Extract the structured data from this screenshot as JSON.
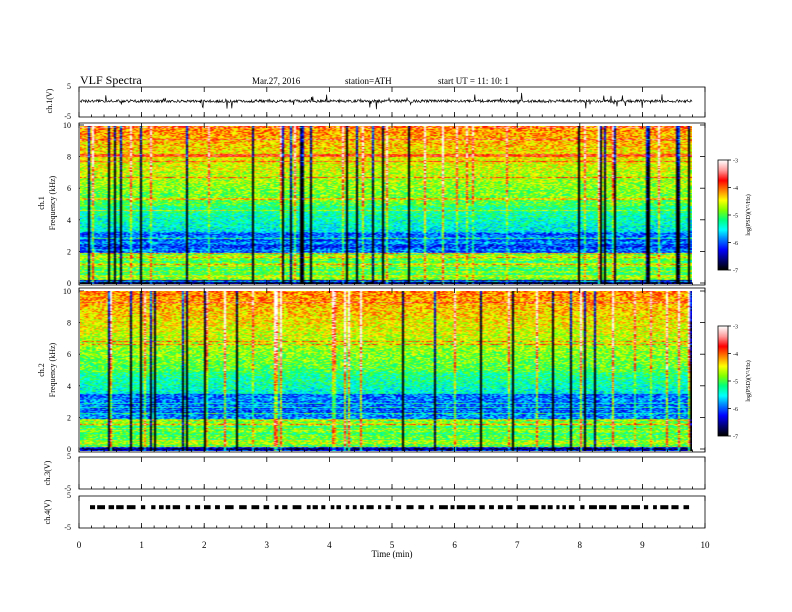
{
  "header": {
    "title": "VLF  Spectra",
    "date": "Mar.27, 2016",
    "station": "station=ATH",
    "start": "start  UT  =    11: 10: 1"
  },
  "chart_data": [
    {
      "type": "line",
      "panel": "ch1-waveform",
      "ylabel": "ch.1(V)",
      "ylim": [
        -5,
        5
      ],
      "yticks": [
        "5",
        "-5"
      ],
      "xlim": [
        0,
        10
      ],
      "baseline": 0.3,
      "color": "#000000"
    },
    {
      "type": "heatmap",
      "panel": "ch1-spectrogram",
      "ylabel": "ch.1\nFrequency  (kHz)",
      "ylim": [
        0,
        10
      ],
      "yticks": [
        "0",
        "2",
        "4",
        "6",
        "8",
        "10"
      ],
      "xlim": [
        0,
        9.8
      ],
      "colorbar": {
        "label": "log(PSD)(V²/Hz)",
        "range": [
          -7,
          -3
        ],
        "ticks": [
          "-3",
          "-4",
          "-5",
          "-6",
          "-7"
        ]
      }
    },
    {
      "type": "heatmap",
      "panel": "ch2-spectrogram",
      "ylabel": "ch.2\nFrequency  (kHz)",
      "ylim": [
        0,
        10
      ],
      "yticks": [
        "0",
        "2",
        "4",
        "6",
        "8",
        "10"
      ],
      "xlim": [
        0,
        9.8
      ],
      "colorbar": {
        "label": "log(PSD)(V²/Hz)",
        "range": [
          -7,
          -3
        ],
        "ticks": [
          "-3",
          "-4",
          "-5",
          "-6",
          "-7"
        ]
      }
    },
    {
      "type": "line",
      "panel": "ch3-waveform",
      "ylabel": "ch.3(V)",
      "ylim": [
        -5,
        5
      ],
      "yticks": [
        "5",
        "-5"
      ],
      "xlim": [
        0,
        10
      ],
      "baseline": null
    },
    {
      "type": "line",
      "panel": "ch4-waveform",
      "ylabel": "ch.4(V)",
      "ylim": [
        -5,
        5
      ],
      "yticks": [
        "5",
        "-5"
      ],
      "xlim": [
        0,
        9.8
      ],
      "baseline": 1.5,
      "style": "dashed"
    }
  ],
  "xaxis": {
    "label": "Time  (min)",
    "ticks": [
      "0",
      "1",
      "2",
      "3",
      "4",
      "5",
      "6",
      "7",
      "8",
      "9",
      "10"
    ],
    "range": [
      0,
      10
    ]
  },
  "colorscale": [
    "#000000",
    "#00007a",
    "#0000ff",
    "#0078ff",
    "#00ffff",
    "#00ff80",
    "#80ff00",
    "#ffff00",
    "#ff8000",
    "#ff0000",
    "#ff9a9a",
    "#ffffff"
  ]
}
